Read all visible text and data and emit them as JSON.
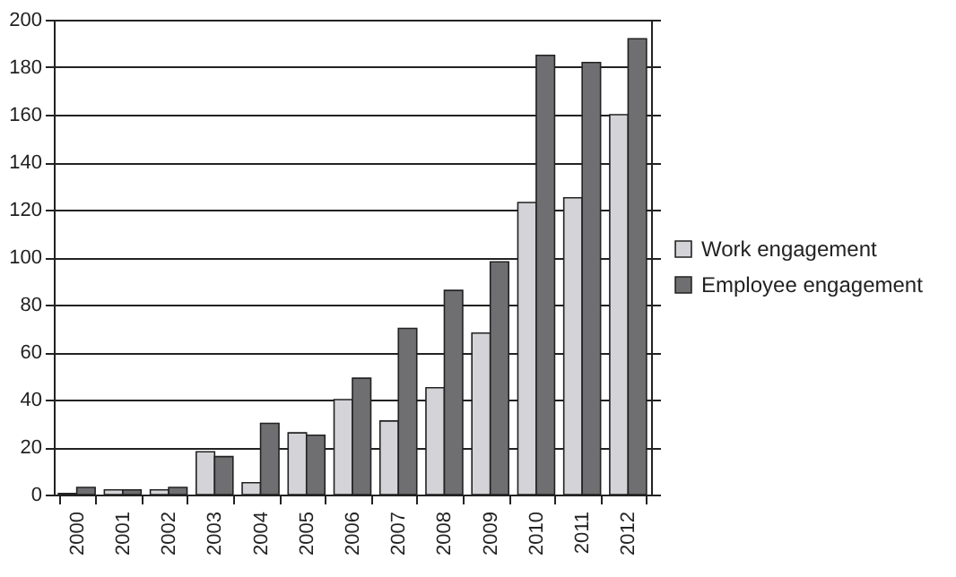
{
  "chart_data": {
    "type": "bar",
    "categories": [
      "2000",
      "2001",
      "2002",
      "2003",
      "2004",
      "2005",
      "2006",
      "2007",
      "2008",
      "2009",
      "2010",
      "2011",
      "2012"
    ],
    "series": [
      {
        "name": "Work engagement",
        "color": "#d4d4d8",
        "values": [
          0.5,
          2,
          2,
          18,
          5,
          26,
          40,
          31,
          45,
          68,
          123,
          125,
          160
        ]
      },
      {
        "name": "Employee engagement",
        "color": "#6f6f71",
        "values": [
          3,
          2,
          3,
          16,
          30,
          25,
          49,
          70,
          86,
          98,
          185,
          182,
          192
        ]
      }
    ],
    "ylim": [
      0,
      200
    ],
    "yticks": [
      0,
      20,
      40,
      60,
      80,
      100,
      120,
      140,
      160,
      180,
      200
    ],
    "grid": "y",
    "legend": "right"
  }
}
